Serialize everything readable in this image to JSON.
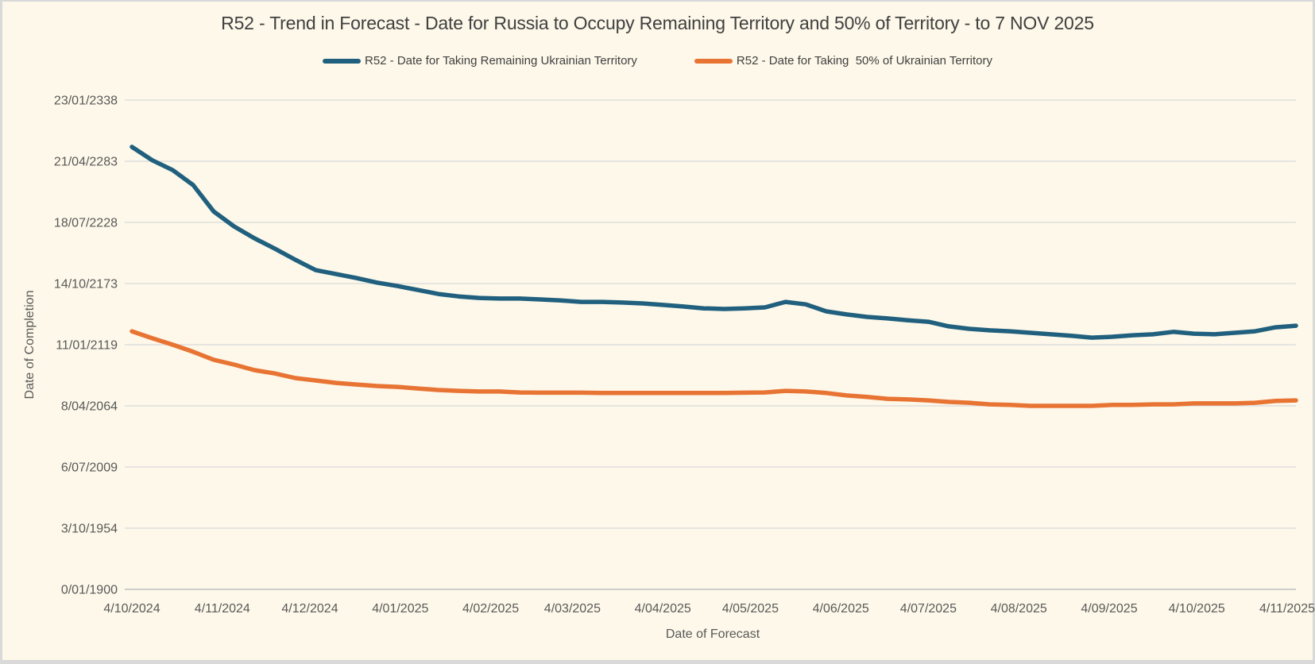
{
  "frame": {
    "border_color": "#d9d9d9",
    "panel_background": "#fdf8e9"
  },
  "chart_data": {
    "type": "line",
    "title": "R52 - Trend in Forecast - Date for Russia to Occupy Remaining Territory and 50% of Territory - to 7 NOV 2025",
    "xlabel": "Date of Forecast",
    "ylabel": "Date of Completion",
    "legend_position": "top",
    "grid": "horizontal",
    "title_color": "#404040",
    "text_color": "#595959",
    "gridline_color": "#d9d9d9",
    "axis_line_color": "#bfbfbf",
    "x_axis": {
      "tick_labels": [
        "4/10/2024",
        "4/11/2024",
        "4/12/2024",
        "4/01/2025",
        "4/02/2025",
        "4/03/2025",
        "4/04/2025",
        "4/05/2025",
        "4/06/2025",
        "4/07/2025",
        "4/08/2025",
        "4/09/2025",
        "4/10/2025",
        "4/11/2025"
      ],
      "start_date": "4/10/2024",
      "end_date": "7/11/2025",
      "point_interval_days": 7
    },
    "y_axis": {
      "tick_labels": [
        "0/01/1900",
        "3/10/1954",
        "6/07/2009",
        "8/04/2064",
        "11/01/2119",
        "14/10/2173",
        "18/07/2228",
        "21/04/2283",
        "23/01/2338"
      ],
      "tick_values": [
        0,
        20000,
        40000,
        60000,
        80000,
        100000,
        120000,
        140000,
        160000
      ],
      "ylim": [
        0,
        160000
      ],
      "unit": "days since 0/01/1900 (Excel date serial shown as d/mm/yyyy)"
    },
    "series": [
      {
        "name": "R52 - Date for Taking Remaining Ukrainian Territory",
        "color": "#20607e",
        "values": [
          144700,
          140300,
          137100,
          132200,
          123600,
          118700,
          114800,
          111400,
          107800,
          104400,
          103100,
          101800,
          100300,
          99200,
          97900,
          96600,
          95800,
          95300,
          95100,
          95100,
          94800,
          94500,
          94000,
          94000,
          93800,
          93500,
          93000,
          92500,
          91900,
          91700,
          91900,
          92200,
          94000,
          93200,
          90900,
          89900,
          89100,
          88600,
          88000,
          87500,
          86000,
          85200,
          84700,
          84400,
          83900,
          83400,
          82900,
          82300,
          82600,
          83100,
          83400,
          84200,
          83600,
          83400,
          83900,
          84400,
          85700,
          86200
        ]
      },
      {
        "name": "R52 - Date for Taking  50% of Ukrainian Territory",
        "color": "#e87434",
        "values": [
          84400,
          82100,
          80000,
          77700,
          75100,
          73500,
          71700,
          70600,
          69100,
          68300,
          67500,
          67000,
          66500,
          66200,
          65700,
          65200,
          64900,
          64700,
          64700,
          64400,
          64300,
          64300,
          64300,
          64200,
          64200,
          64200,
          64200,
          64200,
          64200,
          64200,
          64300,
          64400,
          64900,
          64700,
          64200,
          63400,
          62900,
          62300,
          62100,
          61800,
          61300,
          61000,
          60500,
          60300,
          60000,
          60000,
          60000,
          60000,
          60300,
          60300,
          60500,
          60500,
          60800,
          60800,
          60800,
          61000,
          61600,
          61800
        ]
      }
    ]
  }
}
